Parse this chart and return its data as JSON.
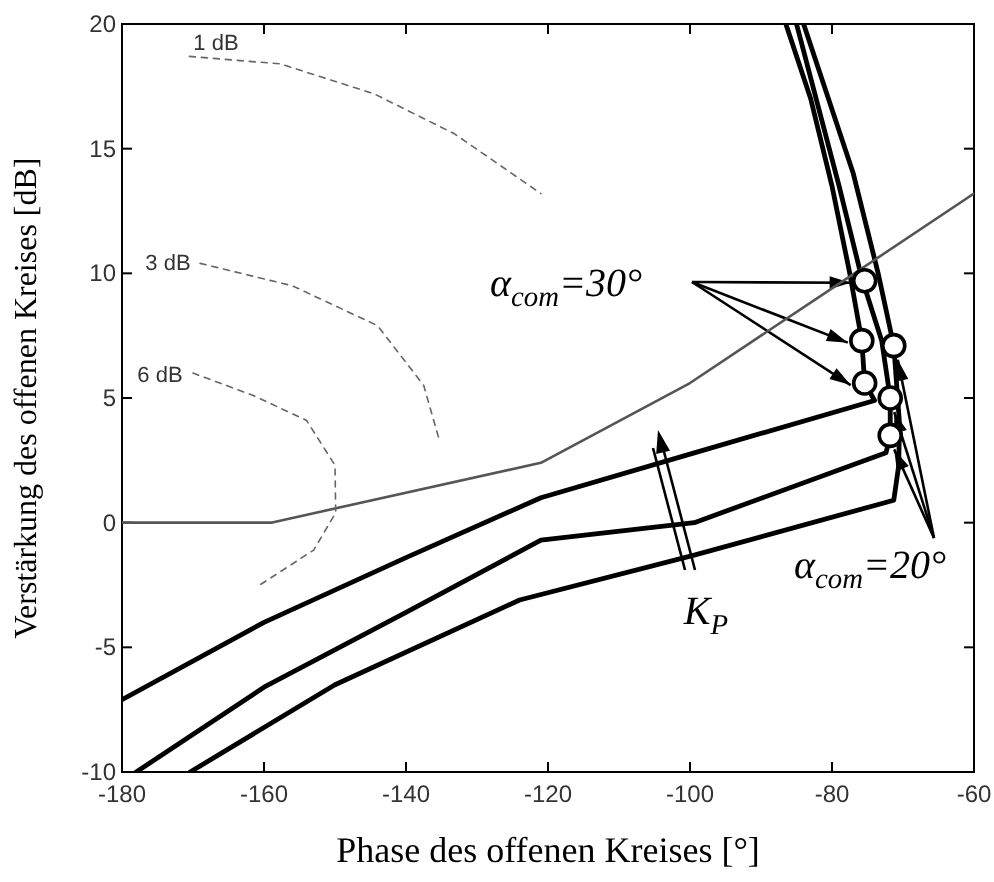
{
  "chart_data": {
    "type": "line",
    "xlabel": "Phase des offenen Kreises [°]",
    "ylabel": "Verstärkung des offenen Kreises [dB]",
    "xlim": [
      -180,
      -60
    ],
    "xticks": [
      -180,
      -160,
      -140,
      -120,
      -100,
      -80,
      -60
    ],
    "ylim": [
      -10,
      20
    ],
    "yticks": [
      -10,
      -5,
      0,
      5,
      10,
      15,
      20
    ],
    "marker": "none",
    "line_style": "solid",
    "series": [
      {
        "color": "#000000",
        "x": [
          -180,
          -160,
          -140,
          -121,
          -99.4,
          -74,
          -75.4,
          -75.8,
          -77.5,
          -80,
          -83,
          -86.5
        ],
        "values": [
          -7.1,
          -4,
          -1.4,
          1,
          2.8,
          4.9,
          5.6,
          7.3,
          10,
          13.5,
          17,
          20
        ]
      },
      {
        "color": "#000000",
        "x": [
          -178,
          -160,
          -140,
          -121,
          -99.4,
          -72.4,
          -71.8,
          -71.8,
          -73,
          -75.8,
          -79,
          -85
        ],
        "values": [
          -10,
          -6.6,
          -3.6,
          -0.7,
          0,
          2.8,
          3.5,
          5,
          7.3,
          9.8,
          13.5,
          20
        ]
      },
      {
        "color": "#000000",
        "x": [
          -170.4,
          -150,
          -124,
          -99.4,
          -71.3,
          -70.6,
          -70.5,
          -71.3,
          -73.5,
          -77,
          -84
        ],
        "values": [
          -10,
          -6.5,
          -3.1,
          -1.3,
          0.9,
          2.3,
          4,
          7.1,
          10,
          14,
          20
        ]
      },
      {
        "color": "#555555",
        "x": [
          -180,
          -159,
          -121,
          -100,
          -80,
          -60
        ],
        "values": [
          0,
          0,
          2.4,
          5.6,
          9.4,
          13.2
        ]
      },
      {
        "color": "#666666",
        "line_style": "dashed",
        "x": [
          -170.5,
          -157.7,
          -144.5,
          -133.2,
          -121
        ],
        "values": [
          18.7,
          18.4,
          17.2,
          15.6,
          13.2
        ]
      },
      {
        "color": "#666666",
        "line_style": "dashed",
        "x": [
          -169,
          -156,
          -144,
          -137.5,
          -135.3
        ],
        "values": [
          10.4,
          9.5,
          7.9,
          5.5,
          3.3
        ]
      },
      {
        "color": "#666666",
        "line_style": "dashed",
        "x": [
          -170,
          -161.5,
          -154,
          -150,
          -149.9,
          -153,
          -160.6
        ],
        "values": [
          6,
          5.1,
          4.1,
          2.3,
          0.4,
          -1.1,
          -2.5
        ]
      },
      {
        "type": "scatter",
        "marker": "circle",
        "color": "#000000",
        "x": [
          -75.4,
          -75.8,
          -75.4
        ],
        "values": [
          9.7,
          7.3,
          5.6
        ]
      },
      {
        "type": "scatter",
        "marker": "circle",
        "color": "#000000",
        "x": [
          -71.3,
          -71.8,
          -71.8
        ],
        "values": [
          7.1,
          5,
          3.5
        ]
      }
    ],
    "annotations": [
      {
        "text": "α$_{com}$=30°",
        "x": -75.8,
        "y": 7.3
      },
      {
        "text": "α$_{com}$=20°",
        "x": -71.8,
        "y": 5
      },
      "K$_{P}$",
      "1 dB",
      "3 dB",
      "6 dB"
    ]
  }
}
